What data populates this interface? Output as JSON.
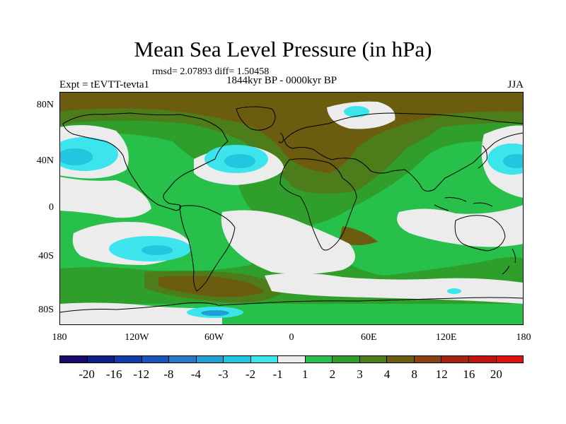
{
  "title": "Mean Sea Level Pressure (in hPa)",
  "stats": "rmsd= 2.07893 diff= 1.50458",
  "period": "1844kyr BP - 0000kyr BP",
  "experiment": "Expt = tEVTT-tevta1",
  "season": "JJA",
  "lat_labels": [
    "80N",
    "40N",
    "0",
    "40S",
    "80S"
  ],
  "lon_labels": [
    "180",
    "120W",
    "60W",
    "0",
    "60E",
    "120E",
    "180"
  ],
  "colorbar": {
    "labels": [
      "-20",
      "-16",
      "-12",
      "-8",
      "-4",
      "-3",
      "-2",
      "-1",
      "1",
      "2",
      "3",
      "4",
      "8",
      "12",
      "16",
      "20"
    ],
    "colors": [
      "#1a0a6b",
      "#0d1f8a",
      "#123aa8",
      "#1a55bd",
      "#2a78c9",
      "#1e9fd6",
      "#22c6df",
      "#3ce4ec",
      "#ececec",
      "#27c04b",
      "#2f9e2a",
      "#4d7d1b",
      "#6b5c10",
      "#8a4010",
      "#a6240f",
      "#c2140d",
      "#de1010"
    ]
  },
  "field_colors": {
    "near_zero": "#ececec",
    "pos_1_2": "#27c04b",
    "pos_2_3": "#2f9e2a",
    "pos_3_4": "#4d7d1b",
    "pos_4_8": "#6b5c10",
    "neg_1_2": "#3ce4ec",
    "neg_2_3": "#22c6df",
    "neg_3_4": "#1e9fd6",
    "neg_4_8": "#2a78c9"
  }
}
